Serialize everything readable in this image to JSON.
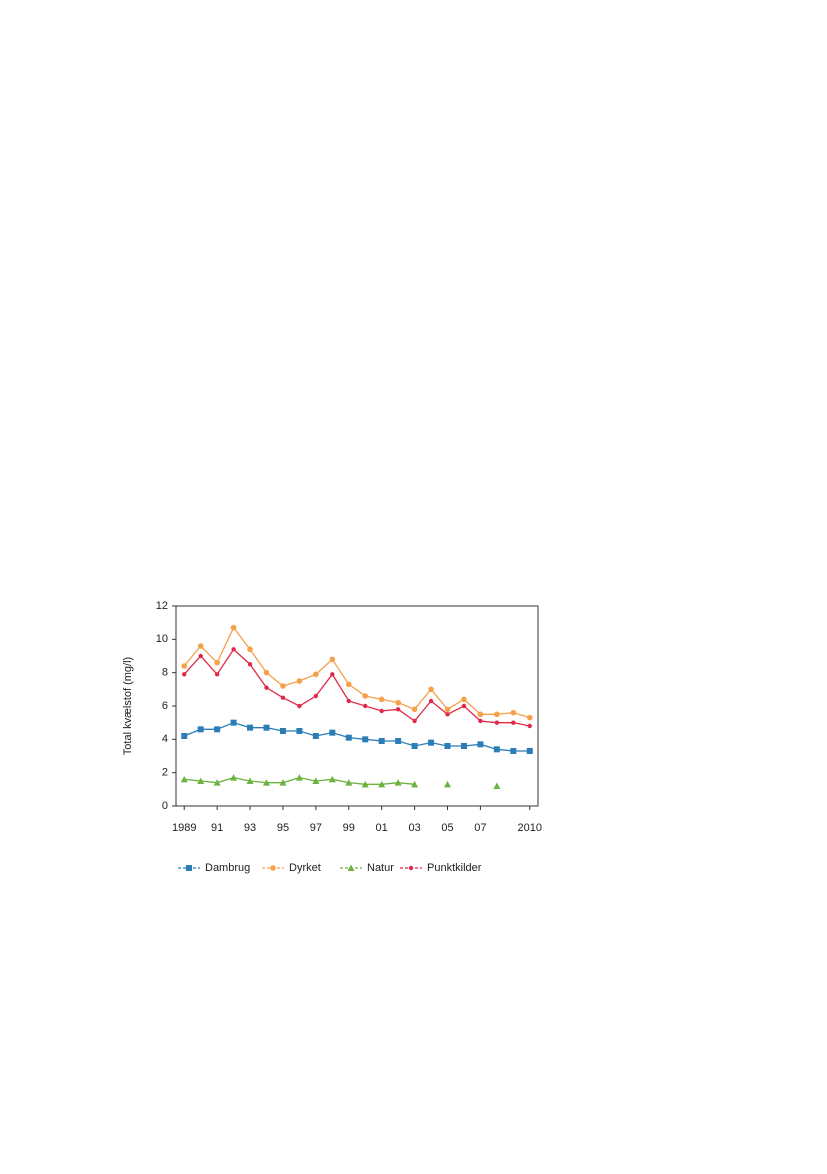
{
  "chart_data": {
    "type": "line",
    "y_label": "Total kvælstof (mg/l)",
    "x": [
      1989,
      1990,
      1991,
      1992,
      1993,
      1994,
      1995,
      1996,
      1997,
      1998,
      1999,
      2000,
      2001,
      2002,
      2003,
      2004,
      2005,
      2006,
      2007,
      2008,
      2009,
      2010
    ],
    "xlim": [
      1988.5,
      2010.5
    ],
    "xticks": [
      {
        "value": 1989,
        "label": "1989"
      },
      {
        "value": 1991,
        "label": "91"
      },
      {
        "value": 1993,
        "label": "93"
      },
      {
        "value": 1995,
        "label": "95"
      },
      {
        "value": 1997,
        "label": "97"
      },
      {
        "value": 1999,
        "label": "99"
      },
      {
        "value": 2001,
        "label": "01"
      },
      {
        "value": 2003,
        "label": "03"
      },
      {
        "value": 2005,
        "label": "05"
      },
      {
        "value": 2007,
        "label": "07"
      },
      {
        "value": 2010,
        "label": "2010"
      }
    ],
    "ylim": [
      0,
      12
    ],
    "yticks": [
      0,
      2,
      4,
      6,
      8,
      10,
      12
    ],
    "series": [
      {
        "name": "Dambrug",
        "color": "#2a7db5",
        "marker": "square",
        "values": [
          4.2,
          4.6,
          4.6,
          5.0,
          4.7,
          4.7,
          4.5,
          4.5,
          4.2,
          4.4,
          4.1,
          4.0,
          3.9,
          3.9,
          3.6,
          3.8,
          3.6,
          3.6,
          3.7,
          3.4,
          3.3,
          3.3
        ]
      },
      {
        "name": "Dyrket",
        "color": "#f5a04a",
        "marker": "circle",
        "values": [
          8.4,
          9.6,
          8.6,
          10.7,
          9.4,
          8.0,
          7.2,
          7.5,
          7.9,
          8.8,
          7.3,
          6.6,
          6.4,
          6.2,
          5.8,
          7.0,
          5.8,
          6.4,
          5.5,
          5.5,
          5.6,
          5.3
        ]
      },
      {
        "name": "Natur",
        "color": "#6cb33f",
        "marker": "triangle",
        "values": [
          1.6,
          1.5,
          1.4,
          1.7,
          1.5,
          1.4,
          1.4,
          1.7,
          1.5,
          1.6,
          1.4,
          1.3,
          1.3,
          1.4,
          1.3,
          null,
          1.3,
          null,
          null,
          1.2,
          null,
          null
        ]
      },
      {
        "name": "Punktkilder",
        "color": "#e0294a",
        "marker": "dot",
        "values": [
          7.9,
          9.0,
          7.9,
          9.4,
          8.5,
          7.1,
          6.5,
          6.0,
          6.6,
          7.9,
          6.3,
          6.0,
          5.7,
          5.8,
          5.1,
          6.3,
          5.5,
          6.0,
          5.1,
          5.0,
          5.0,
          4.8
        ]
      }
    ]
  }
}
